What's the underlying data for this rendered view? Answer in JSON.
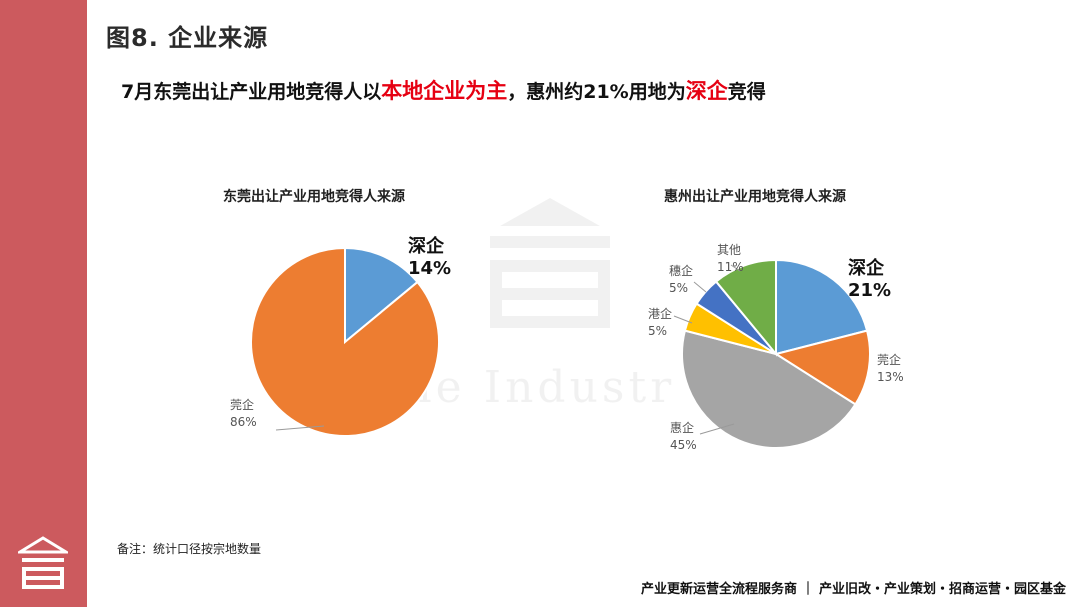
{
  "page_title": "图8. 企业来源",
  "headline": {
    "part1": "7月东莞出让产业用地竞得人以",
    "highlight1": "本地企业为主",
    "part2": "，惠州约21%用地为",
    "highlight2": "深企",
    "part3": "竞得"
  },
  "watermark_text": "The Industr",
  "note": "备注：统计口径按宗地数量",
  "footer": "产业更新运营全流程服务商 ｜ 产业旧改・产业策划・招商运营・园区基金",
  "colors": {
    "sidebar": "#cc5a5e",
    "highlight": "#e60012",
    "blue": "#5b9bd5",
    "orange": "#ed7d31",
    "gray": "#a5a5a5",
    "yellow": "#ffc000",
    "dark_blue": "#4472c4",
    "green": "#70ad47"
  },
  "chart_data": [
    {
      "type": "pie",
      "title": "东莞出让产业用地竞得人来源",
      "slices": [
        {
          "label": "深企",
          "value": 14,
          "display": "14%",
          "color": "#5b9bd5",
          "emphasis": true
        },
        {
          "label": "莞企",
          "value": 86,
          "display": "86%",
          "color": "#ed7d31",
          "emphasis": false
        }
      ]
    },
    {
      "type": "pie",
      "title": "惠州出让产业用地竞得人来源",
      "slices": [
        {
          "label": "深企",
          "value": 21,
          "display": "21%",
          "color": "#5b9bd5",
          "emphasis": true
        },
        {
          "label": "莞企",
          "value": 13,
          "display": "13%",
          "color": "#ed7d31",
          "emphasis": false
        },
        {
          "label": "惠企",
          "value": 45,
          "display": "45%",
          "color": "#a5a5a5",
          "emphasis": false
        },
        {
          "label": "港企",
          "value": 5,
          "display": "5%",
          "color": "#ffc000",
          "emphasis": false
        },
        {
          "label": "穗企",
          "value": 5,
          "display": "5%",
          "color": "#4472c4",
          "emphasis": false
        },
        {
          "label": "其他",
          "value": 11,
          "display": "11%",
          "color": "#70ad47",
          "emphasis": false
        }
      ]
    }
  ]
}
